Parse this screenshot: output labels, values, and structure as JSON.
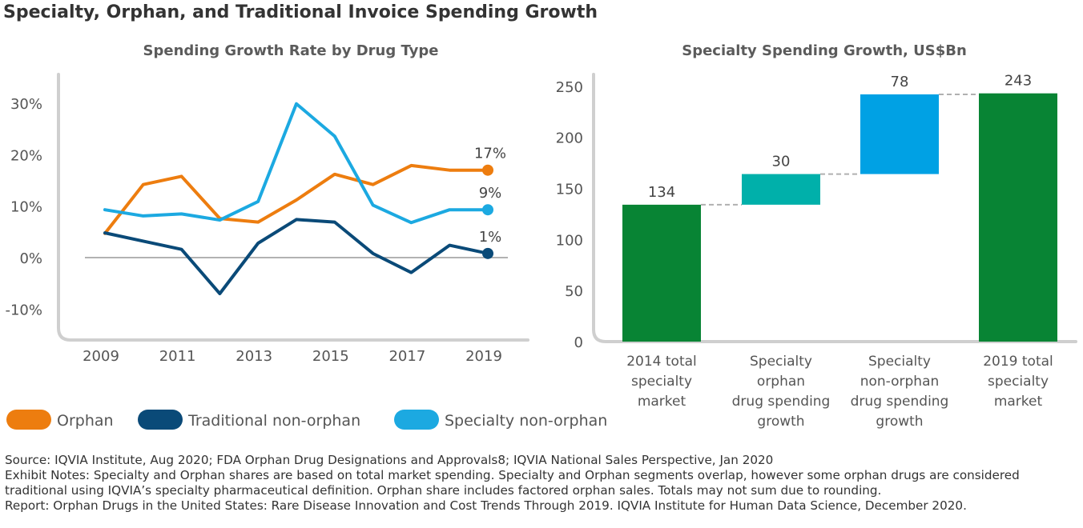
{
  "page_title": "Specialty, Orphan, and Traditional Invoice Spending Growth",
  "chart_data": [
    {
      "type": "line",
      "title": "Spending Growth Rate by Drug Type",
      "x": [
        2009,
        2010,
        2011,
        2012,
        2013,
        2014,
        2015,
        2016,
        2017,
        2018,
        2019
      ],
      "x_tick_labels": [
        "2009",
        "2011",
        "2013",
        "2015",
        "2017",
        "2019"
      ],
      "y_tick_labels": [
        "30%",
        "20%",
        "10%",
        "0%",
        "-10%"
      ],
      "y_ticks": [
        30,
        20,
        10,
        0,
        -10
      ],
      "ylim": [
        -13,
        33
      ],
      "xlim": [
        2008.5,
        2020
      ],
      "series": [
        {
          "name": "Orphan",
          "color": "#ed7d0f",
          "values": [
            4.7,
            14.2,
            15.8,
            7.6,
            6.9,
            11.2,
            16.2,
            14.2,
            17.9,
            17.0,
            17.0
          ],
          "end_label": "17%"
        },
        {
          "name": "Traditional non-orphan",
          "color": "#0a4a78",
          "values": [
            4.8,
            3.2,
            1.6,
            -7.0,
            2.8,
            7.4,
            6.9,
            0.8,
            -2.9,
            2.4,
            0.8
          ],
          "end_label": "1%"
        },
        {
          "name": "Specialty non-orphan",
          "color": "#1ca9e1",
          "values": [
            9.3,
            8.1,
            8.5,
            7.3,
            10.9,
            29.9,
            23.6,
            10.2,
            6.8,
            9.3,
            9.3
          ],
          "end_label": "9%"
        }
      ],
      "legend_placement": "bottom"
    },
    {
      "type": "bar",
      "subtype": "waterfall",
      "title": "Specialty Spending Growth, US$Bn",
      "y_ticks": [
        0,
        50,
        100,
        150,
        200,
        250
      ],
      "ylim": [
        0,
        260
      ],
      "bars": [
        {
          "label_lines": [
            "2014 total",
            "specialty",
            "market"
          ],
          "base": 0,
          "value": 134,
          "value_label": "134",
          "color": "#088434"
        },
        {
          "label_lines": [
            "Specialty",
            "orphan",
            "drug spending",
            "growth"
          ],
          "base": 134,
          "value": 30,
          "value_label": "30",
          "color": "#00b0aa"
        },
        {
          "label_lines": [
            "Specialty",
            "non-orphan",
            "drug spending",
            "growth"
          ],
          "base": 164,
          "value": 78,
          "value_label": "78",
          "color": "#00a1e4"
        },
        {
          "label_lines": [
            "2019 total",
            "specialty",
            "market"
          ],
          "base": 0,
          "value": 243,
          "value_label": "243",
          "color": "#088434"
        }
      ]
    }
  ],
  "legend": [
    {
      "label": "Orphan",
      "color": "#ed7d0f"
    },
    {
      "label": "Traditional non-orphan",
      "color": "#0a4a78"
    },
    {
      "label": "Specialty non-orphan",
      "color": "#1ca9e1"
    }
  ],
  "notes": {
    "source": "Source: IQVIA Institute, Aug 2020; FDA Orphan Drug Designations and Approvals8; IQVIA National Sales Perspective, Jan 2020",
    "exhibit": "Exhibit Notes: Specialty and Orphan shares are based on total market spending. Specialty and Orphan segments overlap, however some orphan drugs are considered traditional using IQVIA’s specialty pharmaceutical definition. Orphan share includes factored orphan sales. Totals may not sum due to rounding.",
    "report": "Report: Orphan Drugs in the United States: Rare Disease Innovation and Cost Trends Through 2019. IQVIA Institute for Human Data Science, December 2020."
  }
}
